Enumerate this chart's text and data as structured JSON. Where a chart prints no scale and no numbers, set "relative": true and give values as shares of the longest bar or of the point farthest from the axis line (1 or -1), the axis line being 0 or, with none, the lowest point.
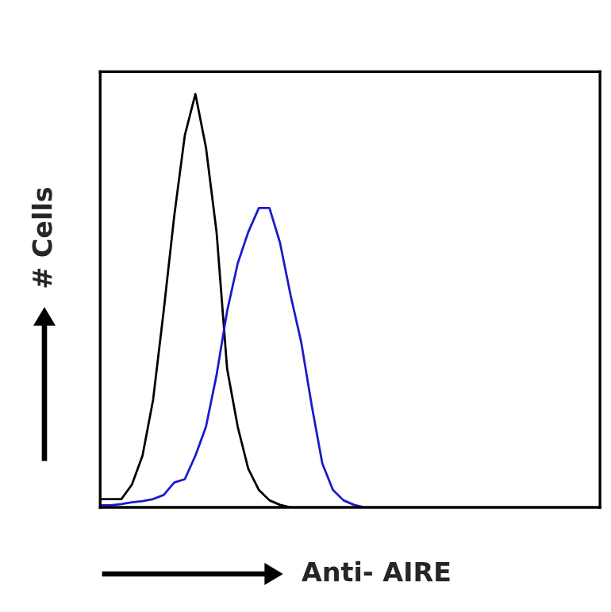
{
  "chart_data": {
    "type": "line",
    "relative": true,
    "xlabel": "Anti- AIRE",
    "ylabel": "# Cells",
    "marker": "none",
    "line_style": "solid",
    "categories": [
      null,
      null,
      null,
      null,
      null,
      null,
      null,
      null,
      null,
      null,
      null,
      null,
      null,
      null,
      null,
      null,
      null,
      null,
      null,
      null,
      null,
      null,
      null,
      null,
      null,
      null,
      null,
      null,
      null,
      null,
      null,
      null,
      null,
      null,
      null,
      null,
      null,
      null,
      null,
      null,
      null,
      null,
      null,
      null,
      null,
      null,
      null,
      null
    ],
    "series": [
      {
        "color": "#000000",
        "values": [
          0.02,
          0.02,
          0.02,
          0.055,
          0.125,
          0.26,
          0.475,
          0.705,
          0.9,
          1.0,
          0.87,
          0.666,
          0.335,
          0.195,
          0.093,
          0.042,
          0.017,
          0.006,
          0,
          null,
          null,
          null,
          null,
          null,
          null,
          null,
          null,
          null,
          null,
          null,
          null,
          null,
          null,
          null,
          null,
          null,
          null,
          null,
          null,
          null,
          null,
          null,
          null,
          null,
          null,
          null,
          null,
          null
        ]
      },
      {
        "color": "#1a1acc",
        "values": [
          0.005,
          0.005,
          0.008,
          0.012,
          0.015,
          0.02,
          0.03,
          0.06,
          0.068,
          0.125,
          0.195,
          0.32,
          0.475,
          0.59,
          0.666,
          0.724,
          0.724,
          0.64,
          0.513,
          0.4,
          0.246,
          0.106,
          0.042,
          0.017,
          0.006,
          0,
          null,
          null,
          null,
          null,
          null,
          null,
          null,
          null,
          null,
          null,
          null,
          null,
          null,
          null,
          null,
          null,
          null,
          null,
          null,
          null,
          null,
          null
        ]
      }
    ]
  }
}
